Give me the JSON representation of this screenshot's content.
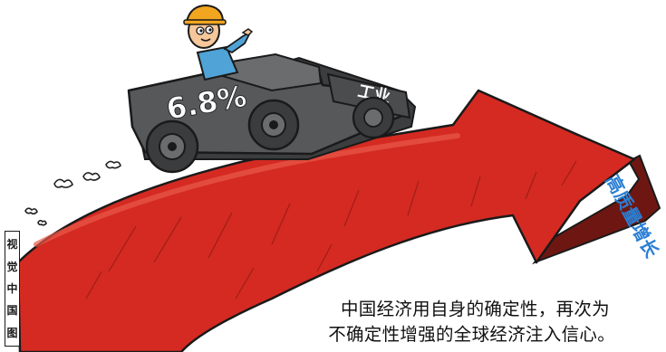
{
  "illustration": {
    "car_label": "6.8%",
    "cargo_label": "工业",
    "arrow_tip_label": "高质量增长",
    "colors": {
      "arrow_red": "#d42a22",
      "arrow_dark": "#6e1712",
      "car_gray": "#56585a",
      "hat_orange": "#f2a51f",
      "shirt_blue": "#4fa3d6",
      "tip_text_blue": "#2b7fd4"
    }
  },
  "watermark": {
    "chars": [
      "视",
      "觉",
      "中",
      "国",
      "图"
    ]
  },
  "caption": {
    "line1": "中国经济用自身的确定性，再次为",
    "line2": "不确定性增强的全球经济注入信心。"
  }
}
